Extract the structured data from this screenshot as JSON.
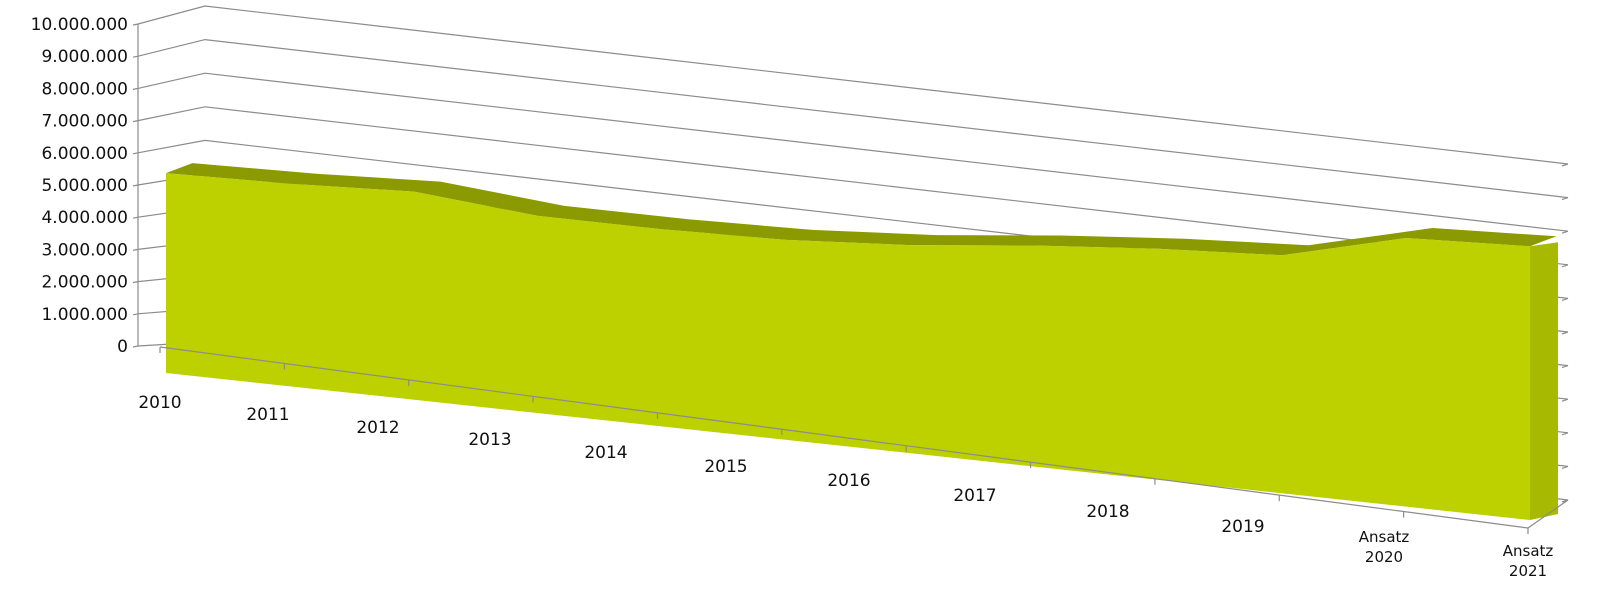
{
  "chart_data": {
    "type": "area",
    "title": "",
    "xlabel": "",
    "ylabel": "",
    "categories": [
      "2010",
      "2011",
      "2012",
      "2013",
      "2014",
      "2015",
      "2016",
      "2017",
      "2018",
      "2019",
      "Ansatz 2020",
      "Ansatz 2021"
    ],
    "category_lines": [
      [
        "2010"
      ],
      [
        "2011"
      ],
      [
        "2012"
      ],
      [
        "2013"
      ],
      [
        "2014"
      ],
      [
        "2015"
      ],
      [
        "2016"
      ],
      [
        "2017"
      ],
      [
        "2018"
      ],
      [
        "2019"
      ],
      [
        "Ansatz",
        "2020"
      ],
      [
        "Ansatz",
        "2021"
      ]
    ],
    "series": [
      {
        "values": [
          5880000,
          5960000,
          6120000,
          5800000,
          5800000,
          5880000,
          6120000,
          6500000,
          6800000,
          7000000,
          7900000,
          8050000
        ],
        "color": "#bdd000",
        "top_color": "#8a9a00"
      }
    ],
    "yticks": [
      "0",
      "1.000.000",
      "2.000.000",
      "3.000.000",
      "4.000.000",
      "5.000.000",
      "6.000.000",
      "7.000.000",
      "8.000.000",
      "9.000.000",
      "10.000.000"
    ],
    "ylim": [
      0,
      10000000
    ],
    "grid": true,
    "legend": "none",
    "style": "3d"
  }
}
